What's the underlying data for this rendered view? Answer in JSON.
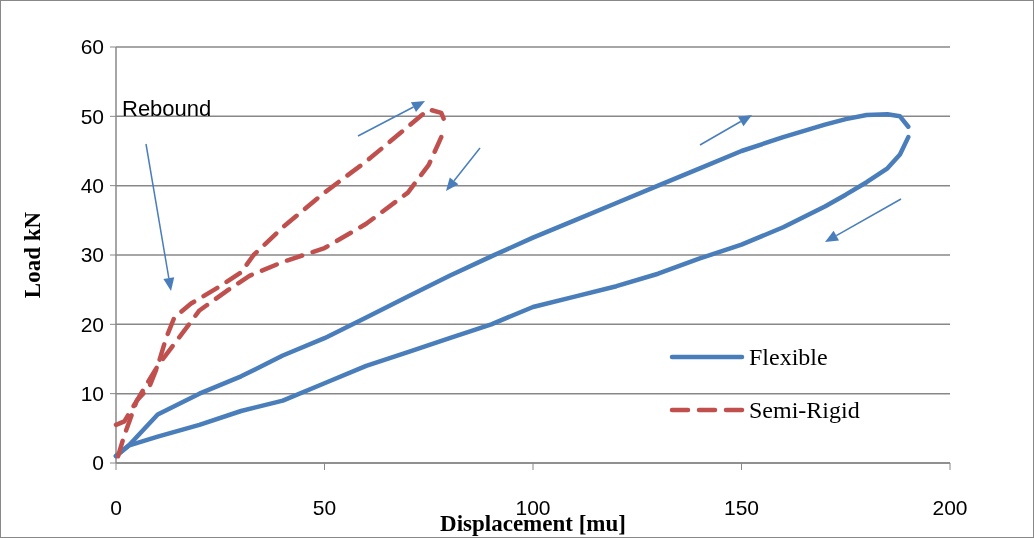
{
  "chart_data": {
    "type": "line",
    "xlabel": "Displacement [mu]",
    "ylabel": "Load kN",
    "xlim": [
      0,
      200
    ],
    "ylim": [
      0,
      60
    ],
    "xticks": [
      0,
      50,
      100,
      150,
      200
    ],
    "yticks": [
      0,
      10,
      20,
      30,
      40,
      50,
      60
    ],
    "grid": "y",
    "legend": "bottom right",
    "annotations": [
      "Rebound"
    ],
    "series": [
      {
        "name": "Flexible",
        "color": "#4a7ebb",
        "line_style": "solid",
        "x": [
          0,
          3,
          10,
          20,
          30,
          40,
          50,
          60,
          70,
          80,
          90,
          100,
          110,
          120,
          130,
          140,
          150,
          160,
          170,
          175,
          180,
          185,
          188,
          190
        ],
        "values": [
          1,
          2.5,
          7,
          10,
          12.5,
          15.5,
          18,
          21,
          24,
          27,
          29.8,
          32.5,
          35,
          37.5,
          40,
          42.5,
          45,
          47,
          48.8,
          49.6,
          50.2,
          50.3,
          50,
          48.5
        ]
      },
      {
        "color": "#4a7ebb",
        "line_style": "solid",
        "x": [
          190,
          188,
          185,
          180,
          175,
          170,
          160,
          150,
          140,
          130,
          120,
          110,
          100,
          90,
          80,
          70,
          60,
          50,
          40,
          30,
          20,
          10,
          3,
          0
        ],
        "values": [
          47,
          44.5,
          42.5,
          40.5,
          38.7,
          37,
          34,
          31.5,
          29.5,
          27.3,
          25.5,
          24,
          22.5,
          20,
          18,
          16,
          14,
          11.5,
          9,
          7.5,
          5.5,
          3.8,
          2.5,
          1
        ]
      },
      {
        "name": "Semi-Rigid",
        "color": "#c0504d",
        "line_style": "dashed",
        "x": [
          0,
          2,
          5,
          8,
          10,
          12,
          14,
          18,
          25,
          30,
          33,
          40,
          50,
          60,
          70,
          75,
          78,
          79
        ],
        "values": [
          5.5,
          6,
          9,
          11,
          14,
          18,
          21,
          23,
          25.5,
          27.5,
          30,
          34,
          39,
          43.5,
          48.5,
          51,
          50.5,
          49
        ]
      },
      {
        "color": "#c0504d",
        "line_style": "dashed",
        "x": [
          78,
          75,
          70,
          60,
          50,
          40,
          32,
          27,
          20,
          15,
          10,
          5,
          2,
          0
        ],
        "values": [
          47,
          43,
          39,
          34.5,
          31,
          29,
          27,
          25,
          22,
          18,
          14,
          9,
          4,
          0
        ]
      }
    ]
  }
}
